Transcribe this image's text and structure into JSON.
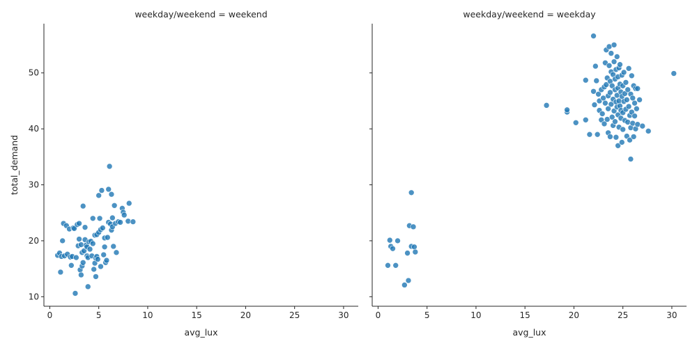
{
  "chart_data": [
    {
      "type": "scatter",
      "title": "weekday/weekend = weekend",
      "xlabel": "avg_lux",
      "ylabel": "total_demand",
      "xlim": [
        -0.6,
        31.5
      ],
      "ylim": [
        8.3,
        58.8
      ],
      "xticks": [
        0,
        5,
        10,
        15,
        20,
        25,
        30
      ],
      "yticks": [
        10,
        20,
        30,
        40,
        50
      ],
      "grid": false,
      "color": "#1f77b4",
      "points": [
        [
          0.8,
          17.4
        ],
        [
          1.0,
          17.8
        ],
        [
          1.1,
          14.4
        ],
        [
          1.2,
          17.2
        ],
        [
          1.3,
          20.0
        ],
        [
          1.4,
          23.1
        ],
        [
          1.5,
          17.3
        ],
        [
          1.7,
          22.7
        ],
        [
          1.8,
          17.6
        ],
        [
          2.0,
          22.1
        ],
        [
          2.1,
          17.1
        ],
        [
          2.2,
          15.6
        ],
        [
          2.3,
          17.2
        ],
        [
          2.4,
          22.3
        ],
        [
          2.5,
          22.2
        ],
        [
          2.6,
          10.6
        ],
        [
          2.7,
          17.0
        ],
        [
          2.8,
          22.9
        ],
        [
          2.9,
          19.1
        ],
        [
          3.0,
          20.3
        ],
        [
          3.0,
          23.1
        ],
        [
          3.1,
          14.8
        ],
        [
          3.2,
          19.3
        ],
        [
          3.2,
          13.9
        ],
        [
          3.3,
          15.5
        ],
        [
          3.3,
          17.9
        ],
        [
          3.4,
          26.2
        ],
        [
          3.4,
          16.1
        ],
        [
          3.5,
          18.2
        ],
        [
          3.6,
          20.2
        ],
        [
          3.6,
          22.4
        ],
        [
          3.7,
          19.2
        ],
        [
          3.8,
          17.3
        ],
        [
          3.8,
          18.9
        ],
        [
          3.9,
          11.8
        ],
        [
          3.9,
          17.0
        ],
        [
          4.0,
          19.8
        ],
        [
          4.1,
          18.5
        ],
        [
          4.2,
          19.9
        ],
        [
          4.3,
          17.3
        ],
        [
          4.4,
          19.5
        ],
        [
          4.4,
          24.0
        ],
        [
          4.5,
          14.9
        ],
        [
          4.6,
          21.0
        ],
        [
          4.6,
          16.0
        ],
        [
          4.7,
          13.6
        ],
        [
          4.7,
          16.9
        ],
        [
          4.8,
          17.2
        ],
        [
          4.8,
          21.1
        ],
        [
          4.9,
          16.7
        ],
        [
          5.0,
          21.5
        ],
        [
          5.0,
          28.1
        ],
        [
          5.1,
          24.0
        ],
        [
          5.2,
          22.0
        ],
        [
          5.2,
          15.4
        ],
        [
          5.3,
          29.0
        ],
        [
          5.4,
          22.3
        ],
        [
          5.5,
          17.5
        ],
        [
          5.6,
          18.9
        ],
        [
          5.6,
          20.5
        ],
        [
          5.7,
          16.1
        ],
        [
          5.8,
          16.5
        ],
        [
          5.9,
          20.6
        ],
        [
          6.0,
          29.2
        ],
        [
          6.0,
          23.3
        ],
        [
          6.1,
          33.3
        ],
        [
          6.2,
          23.0
        ],
        [
          6.3,
          28.3
        ],
        [
          6.3,
          21.9
        ],
        [
          6.4,
          22.5
        ],
        [
          6.4,
          24.1
        ],
        [
          6.5,
          19.0
        ],
        [
          6.6,
          26.3
        ],
        [
          6.7,
          23.1
        ],
        [
          6.8,
          17.9
        ],
        [
          7.0,
          23.4
        ],
        [
          7.2,
          23.3
        ],
        [
          7.4,
          25.8
        ],
        [
          7.5,
          25.1
        ],
        [
          7.6,
          24.6
        ],
        [
          8.0,
          23.5
        ],
        [
          8.1,
          26.7
        ],
        [
          8.5,
          23.4
        ]
      ]
    },
    {
      "type": "scatter",
      "title": "weekday/weekend = weekday",
      "xlabel": "avg_lux",
      "ylabel": "",
      "xlim": [
        -0.6,
        31.5
      ],
      "ylim": [
        8.3,
        58.8
      ],
      "xticks": [
        0,
        5,
        10,
        15,
        20,
        25,
        30
      ],
      "yticks": [
        10,
        20,
        30,
        40,
        50
      ],
      "grid": false,
      "color": "#1f77b4",
      "points": [
        [
          1.0,
          15.6
        ],
        [
          1.2,
          20.1
        ],
        [
          1.3,
          19.0
        ],
        [
          1.5,
          18.6
        ],
        [
          1.8,
          15.6
        ],
        [
          2.0,
          20.0
        ],
        [
          2.7,
          12.1
        ],
        [
          3.0,
          17.8
        ],
        [
          3.1,
          12.9
        ],
        [
          3.2,
          22.7
        ],
        [
          3.4,
          19.0
        ],
        [
          3.4,
          28.6
        ],
        [
          3.6,
          22.5
        ],
        [
          3.7,
          18.9
        ],
        [
          3.8,
          18.0
        ],
        [
          17.2,
          44.2
        ],
        [
          19.3,
          43.0
        ],
        [
          19.3,
          43.4
        ],
        [
          20.2,
          41.1
        ],
        [
          21.2,
          41.6
        ],
        [
          21.2,
          48.7
        ],
        [
          21.6,
          39.0
        ],
        [
          22.0,
          56.6
        ],
        [
          22.0,
          46.7
        ],
        [
          22.1,
          44.3
        ],
        [
          22.2,
          51.2
        ],
        [
          22.3,
          48.6
        ],
        [
          22.4,
          39.0
        ],
        [
          22.5,
          46.2
        ],
        [
          22.6,
          45.0
        ],
        [
          22.6,
          43.3
        ],
        [
          22.8,
          41.6
        ],
        [
          22.8,
          47.0
        ],
        [
          22.9,
          42.7
        ],
        [
          23.0,
          45.5
        ],
        [
          23.1,
          47.5
        ],
        [
          23.1,
          40.9
        ],
        [
          23.2,
          51.8
        ],
        [
          23.2,
          44.6
        ],
        [
          23.3,
          54.1
        ],
        [
          23.3,
          47.9
        ],
        [
          23.4,
          41.7
        ],
        [
          23.4,
          49.1
        ],
        [
          23.5,
          45.9
        ],
        [
          23.5,
          39.3
        ],
        [
          23.5,
          43.6
        ],
        [
          23.6,
          51.3
        ],
        [
          23.6,
          54.7
        ],
        [
          23.7,
          46.5
        ],
        [
          23.7,
          48.5
        ],
        [
          23.7,
          38.6
        ],
        [
          23.8,
          50.2
        ],
        [
          23.8,
          44.4
        ],
        [
          23.8,
          53.5
        ],
        [
          23.9,
          42.1
        ],
        [
          23.9,
          47.7
        ],
        [
          24.0,
          49.7
        ],
        [
          24.0,
          40.6
        ],
        [
          24.0,
          45.3
        ],
        [
          24.1,
          52.0
        ],
        [
          24.1,
          43.2
        ],
        [
          24.1,
          55.0
        ],
        [
          24.2,
          47.0
        ],
        [
          24.2,
          48.9
        ],
        [
          24.2,
          41.3
        ],
        [
          24.3,
          50.6
        ],
        [
          24.3,
          44.8
        ],
        [
          24.3,
          38.5
        ],
        [
          24.4,
          46.0
        ],
        [
          24.4,
          52.9
        ],
        [
          24.4,
          43.9
        ],
        [
          24.5,
          37.0
        ],
        [
          24.5,
          49.3
        ],
        [
          24.5,
          42.5
        ],
        [
          24.5,
          47.3
        ],
        [
          24.6,
          45.0
        ],
        [
          24.6,
          50.9
        ],
        [
          24.6,
          40.3
        ],
        [
          24.7,
          44.1
        ],
        [
          24.7,
          48.0
        ],
        [
          24.7,
          51.5
        ],
        [
          24.8,
          46.6
        ],
        [
          24.8,
          41.9
        ],
        [
          24.8,
          43.3
        ],
        [
          24.9,
          49.6
        ],
        [
          24.9,
          45.8
        ],
        [
          24.9,
          37.6
        ],
        [
          25.0,
          47.7
        ],
        [
          25.0,
          42.9
        ],
        [
          25.0,
          39.9
        ],
        [
          25.1,
          50.1
        ],
        [
          25.1,
          44.9
        ],
        [
          25.2,
          46.3
        ],
        [
          25.2,
          41.5
        ],
        [
          25.3,
          48.3
        ],
        [
          25.3,
          43.5
        ],
        [
          25.4,
          45.2
        ],
        [
          25.4,
          38.7
        ],
        [
          25.5,
          47.0
        ],
        [
          25.5,
          41.2
        ],
        [
          25.6,
          50.8
        ],
        [
          25.6,
          44.0
        ],
        [
          25.7,
          38.0
        ],
        [
          25.7,
          42.4
        ],
        [
          25.8,
          34.6
        ],
        [
          25.8,
          46.2
        ],
        [
          25.8,
          40.2
        ],
        [
          25.9,
          49.5
        ],
        [
          25.9,
          43.0
        ],
        [
          26.0,
          45.5
        ],
        [
          26.0,
          41.0
        ],
        [
          26.1,
          38.6
        ],
        [
          26.1,
          47.7
        ],
        [
          26.2,
          42.3
        ],
        [
          26.2,
          44.6
        ],
        [
          26.3,
          40.0
        ],
        [
          26.3,
          47.2
        ],
        [
          26.4,
          43.6
        ],
        [
          26.5,
          40.8
        ],
        [
          26.5,
          47.2
        ],
        [
          26.7,
          45.2
        ],
        [
          27.0,
          40.5
        ],
        [
          27.6,
          39.6
        ],
        [
          30.2,
          49.9
        ]
      ]
    }
  ]
}
